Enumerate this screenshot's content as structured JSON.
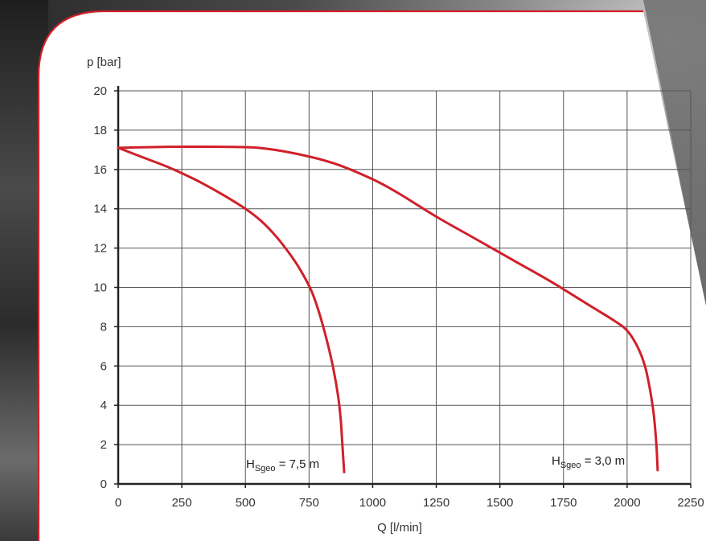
{
  "chart_data": {
    "type": "line",
    "xlabel": "Q [l/min]",
    "ylabel": "p [bar]",
    "xlim": [
      0,
      2250
    ],
    "ylim": [
      0,
      20
    ],
    "xticks": [
      0,
      250,
      500,
      750,
      1000,
      1250,
      1500,
      1750,
      2000,
      2250
    ],
    "yticks": [
      0,
      2,
      4,
      6,
      8,
      10,
      12,
      14,
      16,
      18,
      20
    ],
    "grid": true,
    "colors": {
      "curve": "#d0202a",
      "frame": "#d0202a",
      "grid": "#555555"
    },
    "series": [
      {
        "label_main": "H",
        "label_sub": "Sgeo",
        "label_rest": " = 7,5 m",
        "x": [
          0,
          100,
          200,
          300,
          400,
          500,
          560,
          620,
          680,
          720,
          760,
          790,
          820,
          845,
          865,
          875,
          880,
          885,
          888
        ],
        "y": [
          17.1,
          16.6,
          16.1,
          15.5,
          14.8,
          14.0,
          13.4,
          12.6,
          11.6,
          10.8,
          9.8,
          8.7,
          7.3,
          5.9,
          4.4,
          3.2,
          2.2,
          1.2,
          0.6
        ]
      },
      {
        "label_main": "H",
        "label_sub": "Sgeo",
        "label_rest": " = 3,0 m",
        "x": [
          0,
          200,
          400,
          550,
          700,
          850,
          1000,
          1100,
          1250,
          1400,
          1550,
          1700,
          1850,
          1950,
          2000,
          2040,
          2070,
          2090,
          2105,
          2115,
          2120
        ],
        "y": [
          17.1,
          17.15,
          17.15,
          17.1,
          16.8,
          16.3,
          15.5,
          14.8,
          13.6,
          12.5,
          11.4,
          10.3,
          9.1,
          8.3,
          7.8,
          7.0,
          6.0,
          4.8,
          3.5,
          2.0,
          0.7
        ]
      }
    ]
  }
}
